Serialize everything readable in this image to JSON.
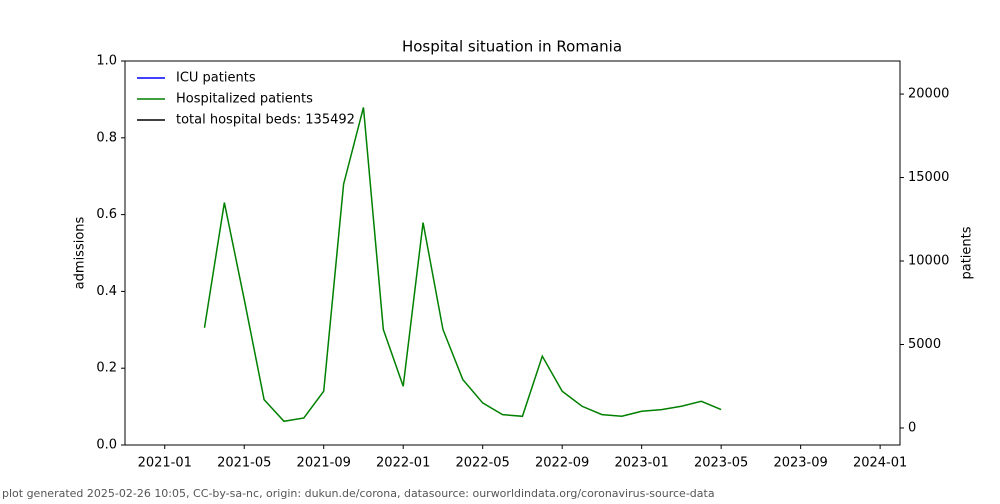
{
  "chart_data": {
    "type": "line",
    "title": "Hospital situation in Romania",
    "ylabel": "admissions",
    "y2label": "patients",
    "footer": "plot generated 2025-02-26 10:05, CC-by-sa-nc, origin: dukun.de/corona, datasource: ourworldindata.org/coronavirus-source-data",
    "x": [
      "2021-03",
      "2021-04",
      "2021-05",
      "2021-06",
      "2021-07",
      "2021-08",
      "2021-09",
      "2021-10",
      "2021-11",
      "2021-12",
      "2022-01",
      "2022-02",
      "2022-03",
      "2022-04",
      "2022-05",
      "2022-06",
      "2022-07",
      "2022-08",
      "2022-09",
      "2022-10",
      "2022-11",
      "2022-12",
      "2023-01",
      "2023-02",
      "2023-03",
      "2023-04",
      "2023-05"
    ],
    "series": [
      {
        "name": "ICU patients",
        "color": "#0000ff",
        "axis": "y2",
        "values": [
          null,
          null,
          null,
          null,
          null,
          null,
          null,
          null,
          null,
          null,
          null,
          null,
          null,
          null,
          null,
          null,
          null,
          null,
          null,
          null,
          null,
          null,
          null,
          null,
          null,
          null,
          null
        ]
      },
      {
        "name": "Hospitalized patients",
        "color": "#008000",
        "axis": "y2",
        "values": [
          6000,
          13500,
          7700,
          1700,
          400,
          600,
          2200,
          14600,
          19200,
          5900,
          2500,
          12300,
          5900,
          2900,
          1500,
          800,
          700,
          4300,
          2200,
          1300,
          800,
          700,
          1000,
          1100,
          1300,
          1600,
          1100
        ]
      },
      {
        "name": "total hospital beds: 135492",
        "color": "#000000",
        "axis": "y2",
        "values": [
          null,
          null,
          null,
          null,
          null,
          null,
          null,
          null,
          null,
          null,
          null,
          null,
          null,
          null,
          null,
          null,
          null,
          null,
          null,
          null,
          null,
          null,
          null,
          null,
          null,
          null,
          null
        ]
      }
    ],
    "xlim": [
      "2020-11",
      "2024-02"
    ],
    "xticks": [
      "2021-01",
      "2021-05",
      "2021-09",
      "2022-01",
      "2022-05",
      "2022-09",
      "2023-01",
      "2023-05",
      "2023-09",
      "2024-01"
    ],
    "ylim": [
      0,
      1
    ],
    "yticks": [
      {
        "value": 0,
        "label": "0.0"
      },
      0.2,
      0.4,
      0.6,
      0.8,
      {
        "value": 1,
        "label": "1.0"
      }
    ],
    "y2lim": [
      -1020,
      21980
    ],
    "y2ticks": [
      0,
      5000,
      10000,
      15000,
      20000
    ],
    "legend": "upper left",
    "grid": false
  }
}
